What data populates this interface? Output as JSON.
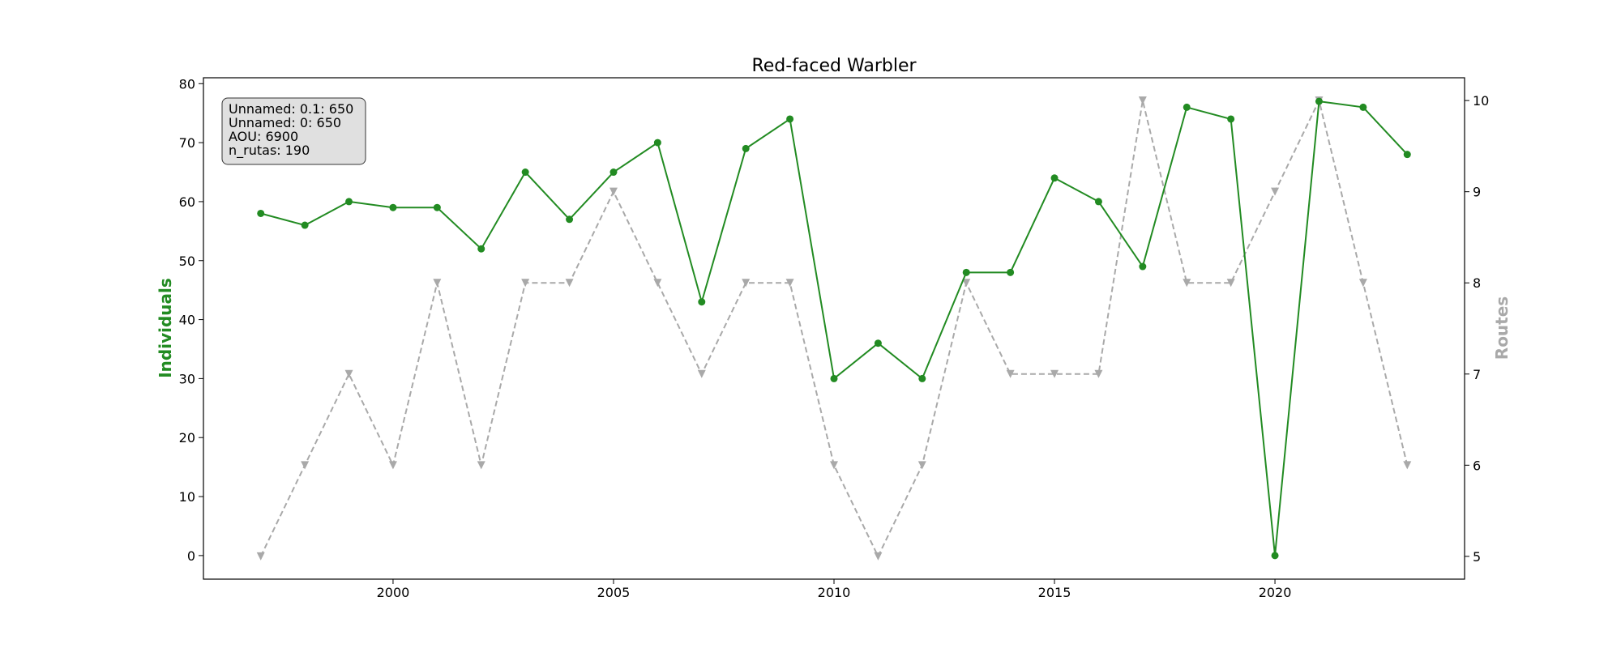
{
  "chart_data": {
    "type": "line",
    "title": "Red-faced Warbler",
    "x": [
      1997,
      1998,
      1999,
      2000,
      2001,
      2002,
      2003,
      2004,
      2005,
      2006,
      2007,
      2008,
      2009,
      2010,
      2011,
      2012,
      2013,
      2014,
      2015,
      2016,
      2017,
      2018,
      2019,
      2020,
      2021,
      2022,
      2023
    ],
    "xlim": [
      1995.7,
      2024.3
    ],
    "x_ticks": [
      2000,
      2005,
      2010,
      2015,
      2020
    ],
    "ylabel_left": "Individuals",
    "ylabel_right": "Routes",
    "ylim_left": [
      -4,
      81
    ],
    "ylim_right": [
      4.75,
      10.25
    ],
    "y_ticks_left": [
      0,
      10,
      20,
      30,
      40,
      50,
      60,
      70,
      80
    ],
    "y_ticks_right": [
      5,
      6,
      7,
      8,
      9,
      10
    ],
    "grid": false,
    "series": [
      {
        "name": "Individuals",
        "axis": "left",
        "color": "#228B22",
        "style": "solid",
        "marker": "circle",
        "values": [
          58,
          56,
          60,
          59,
          59,
          52,
          65,
          57,
          65,
          70,
          43,
          69,
          74,
          30,
          36,
          30,
          48,
          48,
          64,
          60,
          49,
          76,
          74,
          0,
          77,
          76,
          68
        ]
      },
      {
        "name": "Routes",
        "axis": "right",
        "color": "#A9A9A9",
        "style": "dashed",
        "marker": "triangle-down",
        "values": [
          5,
          6,
          7,
          6,
          8,
          6,
          8,
          8,
          9,
          8,
          7,
          8,
          8,
          6,
          5,
          6,
          8,
          7,
          7,
          7,
          10,
          8,
          8,
          9,
          10,
          8,
          6
        ]
      }
    ],
    "info_box": {
      "lines": [
        "Unnamed: 0.1: 650",
        "Unnamed: 0: 650",
        "AOU: 6900",
        "n_rutas: 190"
      ],
      "placement": "top-left"
    }
  }
}
